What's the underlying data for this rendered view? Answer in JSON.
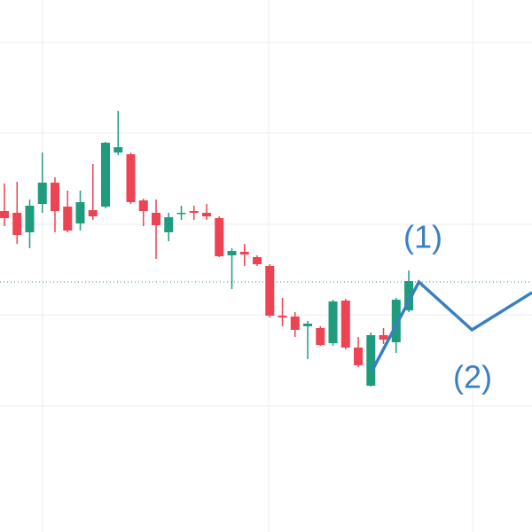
{
  "chart_data": {
    "type": "candlestick",
    "open": [
      362,
      360,
      338,
      370,
      394,
      367,
      348,
      363,
      367,
      428,
      426,
      374,
      360,
      338,
      359,
      362,
      360,
      354,
      312,
      316,
      310,
      300,
      244,
      243,
      232,
      230,
      213,
      261,
      208,
      165,
      222,
      214,
      250
    ],
    "high": [
      393,
      395,
      375,
      428,
      400,
      385,
      385,
      415,
      440,
      475,
      428,
      376,
      375,
      360,
      368,
      368,
      370,
      356,
      320,
      325,
      312,
      302,
      264,
      248,
      238,
      232,
      262,
      263,
      220,
      225,
      230,
      264,
      295
    ],
    "low": [
      345,
      325,
      320,
      360,
      338,
      338,
      340,
      352,
      365,
      425,
      370,
      345,
      308,
      328,
      352,
      352,
      352,
      310,
      274,
      300,
      300,
      242,
      232,
      220,
      195,
      210,
      210,
      206,
      186,
      164,
      212,
      202,
      248
    ],
    "close": [
      354,
      335,
      368,
      394,
      362,
      340,
      372,
      356,
      439,
      434,
      372,
      362,
      346,
      355,
      360,
      360,
      356,
      311,
      317,
      313,
      302,
      244,
      242,
      228,
      235,
      211,
      260,
      208,
      188,
      222,
      217,
      262,
      283
    ],
    "up_color": "#1f9c7e",
    "down_color": "#ee4352",
    "price_line": 282,
    "wave": {
      "x": [
        29.1,
        32.8,
        37.0,
        41.75
      ],
      "values": [
        182,
        282,
        228,
        270
      ],
      "color": "#3a7fc0"
    },
    "annotations": [
      "(1)",
      "(2)"
    ],
    "xlim": [
      -0.35,
      41.75
    ],
    "ylim": [
      0,
      600
    ]
  }
}
